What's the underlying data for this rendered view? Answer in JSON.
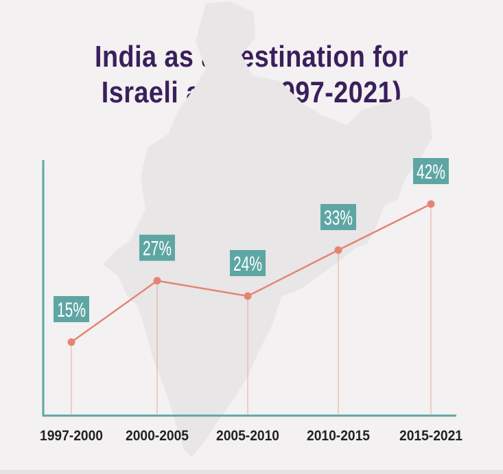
{
  "colors": {
    "background": "#f3f1f1",
    "title": "#3a1f5c",
    "line": "#e48476",
    "label_box": "#5ea6a3",
    "axis": "#5ea6a3",
    "tick_text": "#222222",
    "map_silhouette": "#e8e6e6"
  },
  "chart_data": {
    "type": "line",
    "title": [
      "India as a destination for",
      "Israeli arms (1997-2021)"
    ],
    "categories": [
      "1997-2000",
      "2000-2005",
      "2005-2010",
      "2010-2015",
      "2015-2021"
    ],
    "values": [
      15,
      27,
      24,
      33,
      42
    ],
    "data_labels": [
      "15%",
      "27%",
      "24%",
      "33%",
      "42%"
    ],
    "unit": "%",
    "xlabel": "",
    "ylabel": "",
    "grid": false,
    "legend": "none"
  }
}
